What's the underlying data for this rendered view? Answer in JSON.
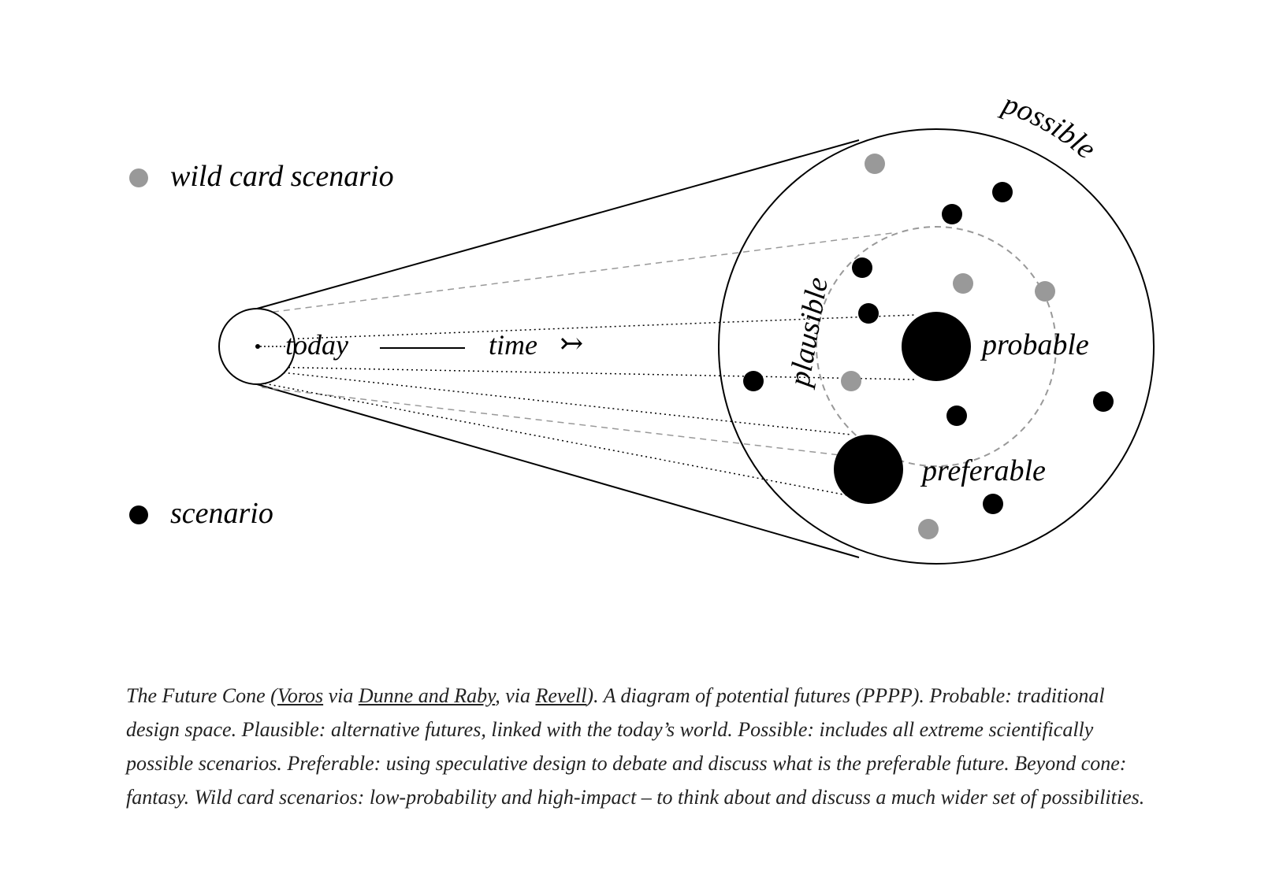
{
  "legend": {
    "wild_card": {
      "label": "wild card scenario",
      "color": "#999999"
    },
    "scenario": {
      "label": "scenario",
      "color": "#000000"
    }
  },
  "labels": {
    "today": "today",
    "time": "time",
    "time_arrow": "↣",
    "possible": "possible",
    "plausible": "plausible",
    "probable": "probable",
    "preferable": "preferable"
  },
  "colors": {
    "line": "#000000",
    "dashed": "#999999",
    "wild_card_dot": "#999999",
    "scenario_dot": "#000000"
  },
  "caption": {
    "part1": "The Future Cone (",
    "link1": "Voros",
    "part2": " via ",
    "link2": "Dunne and Raby",
    "part3": ", via ",
    "link3": "Revell",
    "part4": "). A diagram of potential futures (PPPP). Probable: traditional design space. Plausible: alternative futures, linked with the today’s world. Possible: includes all extreme scientifically possible scenarios. Preferable: using speculative design to debate and discuss what is the preferable future. Beyond cone: fantasy. Wild card scenarios: low-probability and high-impact – to think about and discuss a much wider set of possibilities."
  }
}
